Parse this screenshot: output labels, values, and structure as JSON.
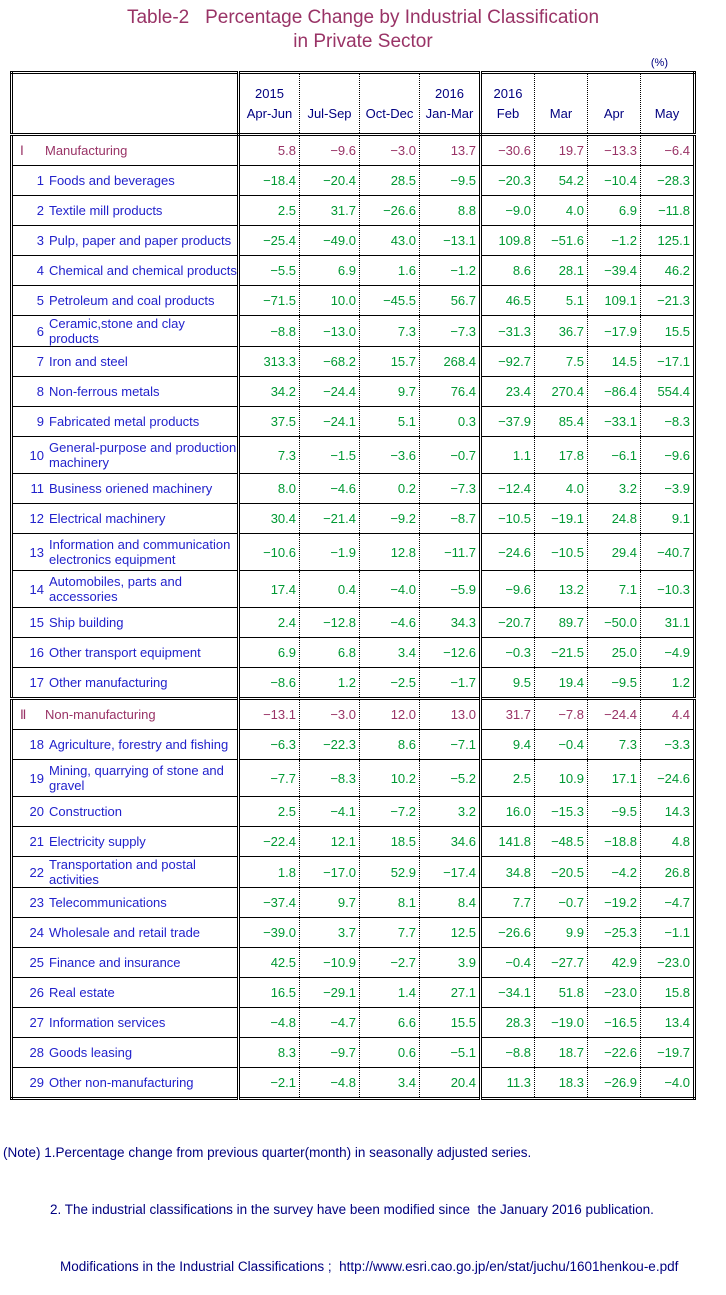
{
  "title": {
    "line1": "Table-2   Percentage Change by Industrial Classification",
    "line2": "in Private Sector"
  },
  "unit_label": "(%)",
  "colors": {
    "title": "#993366",
    "section_rows": "#993366",
    "item_labels": "#2222CC",
    "item_values": "#009933",
    "header_text": "#000080",
    "notes_text": "#000080"
  },
  "table": {
    "columns": [
      {
        "year": "2015",
        "period": "Apr-Jun"
      },
      {
        "year": "",
        "period": "Jul-Sep"
      },
      {
        "year": "",
        "period": "Oct-Dec"
      },
      {
        "year": "2016",
        "period": "Jan-Mar"
      },
      {
        "year": "2016",
        "period": "Feb"
      },
      {
        "year": "",
        "period": "Mar"
      },
      {
        "year": "",
        "period": "Apr"
      },
      {
        "year": "",
        "period": "May"
      }
    ],
    "rows": [
      {
        "no": "Ⅰ",
        "label": "Manufacturing",
        "type": "section",
        "tall": false,
        "values": [
          "5.8",
          "−9.6",
          "−3.0",
          "13.7",
          "−30.6",
          "19.7",
          "−13.3",
          "−6.4"
        ]
      },
      {
        "no": "1",
        "label": "Foods and beverages",
        "type": "item",
        "tall": false,
        "values": [
          "−18.4",
          "−20.4",
          "28.5",
          "−9.5",
          "−20.3",
          "54.2",
          "−10.4",
          "−28.3"
        ]
      },
      {
        "no": "2",
        "label": "Textile mill products",
        "type": "item",
        "tall": false,
        "values": [
          "2.5",
          "31.7",
          "−26.6",
          "8.8",
          "−9.0",
          "4.0",
          "6.9",
          "−11.8"
        ]
      },
      {
        "no": "3",
        "label": "Pulp, paper and paper products",
        "type": "item",
        "tall": false,
        "values": [
          "−25.4",
          "−49.0",
          "43.0",
          "−13.1",
          "109.8",
          "−51.6",
          "−1.2",
          "125.1"
        ]
      },
      {
        "no": "4",
        "label": "Chemical and chemical products",
        "type": "item",
        "tall": false,
        "values": [
          "−5.5",
          "6.9",
          "1.6",
          "−1.2",
          "8.6",
          "28.1",
          "−39.4",
          "46.2"
        ]
      },
      {
        "no": "5",
        "label": "Petroleum and coal products",
        "type": "item",
        "tall": false,
        "values": [
          "−71.5",
          "10.0",
          "−45.5",
          "56.7",
          "46.5",
          "5.1",
          "109.1",
          "−21.3"
        ]
      },
      {
        "no": "6",
        "label": "Ceramic,stone and clay products",
        "type": "item",
        "tall": false,
        "values": [
          "−8.8",
          "−13.0",
          "7.3",
          "−7.3",
          "−31.3",
          "36.7",
          "−17.9",
          "15.5"
        ]
      },
      {
        "no": "7",
        "label": "Iron and steel",
        "type": "item",
        "tall": false,
        "values": [
          "313.3",
          "−68.2",
          "15.7",
          "268.4",
          "−92.7",
          "7.5",
          "14.5",
          "−17.1"
        ]
      },
      {
        "no": "8",
        "label": "Non-ferrous metals",
        "type": "item",
        "tall": false,
        "values": [
          "34.2",
          "−24.4",
          "9.7",
          "76.4",
          "23.4",
          "270.4",
          "−86.4",
          "554.4"
        ]
      },
      {
        "no": "9",
        "label": "Fabricated metal products",
        "type": "item",
        "tall": false,
        "values": [
          "37.5",
          "−24.1",
          "5.1",
          "0.3",
          "−37.9",
          "85.4",
          "−33.1",
          "−8.3"
        ]
      },
      {
        "no": "10",
        "label": "General-purpose and production machinery",
        "type": "item",
        "tall": true,
        "values": [
          "7.3",
          "−1.5",
          "−3.6",
          "−0.7",
          "1.1",
          "17.8",
          "−6.1",
          "−9.6"
        ]
      },
      {
        "no": "11",
        "label": "Business oriened machinery",
        "type": "item",
        "tall": false,
        "values": [
          "8.0",
          "−4.6",
          "0.2",
          "−7.3",
          "−12.4",
          "4.0",
          "3.2",
          "−3.9"
        ]
      },
      {
        "no": "12",
        "label": "Electrical machinery",
        "type": "item",
        "tall": false,
        "values": [
          "30.4",
          "−21.4",
          "−9.2",
          "−8.7",
          "−10.5",
          "−19.1",
          "24.8",
          "9.1"
        ]
      },
      {
        "no": "13",
        "label": "Information and communication electronics equipment",
        "type": "item",
        "tall": true,
        "values": [
          "−10.6",
          "−1.9",
          "12.8",
          "−11.7",
          "−24.6",
          "−10.5",
          "29.4",
          "−40.7"
        ]
      },
      {
        "no": "14",
        "label": "Automobiles, parts and accessories",
        "type": "item",
        "tall": true,
        "values": [
          "17.4",
          "0.4",
          "−4.0",
          "−5.9",
          "−9.6",
          "13.2",
          "7.1",
          "−10.3"
        ]
      },
      {
        "no": "15",
        "label": "Ship building",
        "type": "item",
        "tall": false,
        "values": [
          "2.4",
          "−12.8",
          "−4.6",
          "34.3",
          "−20.7",
          "89.7",
          "−50.0",
          "31.1"
        ]
      },
      {
        "no": "16",
        "label": "Other transport equipment",
        "type": "item",
        "tall": false,
        "values": [
          "6.9",
          "6.8",
          "3.4",
          "−12.6",
          "−0.3",
          "−21.5",
          "25.0",
          "−4.9"
        ]
      },
      {
        "no": "17",
        "label": "Other manufacturing",
        "type": "item",
        "tall": false,
        "values": [
          "−8.6",
          "1.2",
          "−2.5",
          "−1.7",
          "9.5",
          "19.4",
          "−9.5",
          "1.2"
        ]
      },
      {
        "no": "Ⅱ",
        "label": "Non-manufacturing",
        "type": "section",
        "tall": false,
        "values": [
          "−13.1",
          "−3.0",
          "12.0",
          "13.0",
          "31.7",
          "−7.8",
          "−24.4",
          "4.4"
        ]
      },
      {
        "no": "18",
        "label": "Agriculture, forestry and fishing",
        "type": "item",
        "tall": false,
        "values": [
          "−6.3",
          "−22.3",
          "8.6",
          "−7.1",
          "9.4",
          "−0.4",
          "7.3",
          "−3.3"
        ]
      },
      {
        "no": "19",
        "label": "Mining, quarrying of stone and gravel",
        "type": "item",
        "tall": true,
        "values": [
          "−7.7",
          "−8.3",
          "10.2",
          "−5.2",
          "2.5",
          "10.9",
          "17.1",
          "−24.6"
        ]
      },
      {
        "no": "20",
        "label": "Construction",
        "type": "item",
        "tall": false,
        "values": [
          "2.5",
          "−4.1",
          "−7.2",
          "3.2",
          "16.0",
          "−15.3",
          "−9.5",
          "14.3"
        ]
      },
      {
        "no": "21",
        "label": "Electricity supply",
        "type": "item",
        "tall": false,
        "values": [
          "−22.4",
          "12.1",
          "18.5",
          "34.6",
          "141.8",
          "−48.5",
          "−18.8",
          "4.8"
        ]
      },
      {
        "no": "22",
        "label": "Transportation and postal activities",
        "type": "item",
        "tall": false,
        "values": [
          "1.8",
          "−17.0",
          "52.9",
          "−17.4",
          "34.8",
          "−20.5",
          "−4.2",
          "26.8"
        ]
      },
      {
        "no": "23",
        "label": "Telecommunications",
        "type": "item",
        "tall": false,
        "values": [
          "−37.4",
          "9.7",
          "8.1",
          "8.4",
          "7.7",
          "−0.7",
          "−19.2",
          "−4.7"
        ]
      },
      {
        "no": "24",
        "label": "Wholesale and retail trade",
        "type": "item",
        "tall": false,
        "values": [
          "−39.0",
          "3.7",
          "7.7",
          "12.5",
          "−26.6",
          "9.9",
          "−25.3",
          "−1.1"
        ]
      },
      {
        "no": "25",
        "label": "Finance and insurance",
        "type": "item",
        "tall": false,
        "values": [
          "42.5",
          "−10.9",
          "−2.7",
          "3.9",
          "−0.4",
          "−27.7",
          "42.9",
          "−23.0"
        ]
      },
      {
        "no": "26",
        "label": "Real estate",
        "type": "item",
        "tall": false,
        "values": [
          "16.5",
          "−29.1",
          "1.4",
          "27.1",
          "−34.1",
          "51.8",
          "−23.0",
          "15.8"
        ]
      },
      {
        "no": "27",
        "label": "Information services",
        "type": "item",
        "tall": false,
        "values": [
          "−4.8",
          "−4.7",
          "6.6",
          "15.5",
          "28.3",
          "−19.0",
          "−16.5",
          "13.4"
        ]
      },
      {
        "no": "28",
        "label": "Goods leasing",
        "type": "item",
        "tall": false,
        "values": [
          "8.3",
          "−9.7",
          "0.6",
          "−5.1",
          "−8.8",
          "18.7",
          "−22.6",
          "−19.7"
        ]
      },
      {
        "no": "29",
        "label": "Other non-manufacturing",
        "type": "item",
        "tall": false,
        "values": [
          "−2.1",
          "−4.8",
          "3.4",
          "20.4",
          "11.3",
          "18.3",
          "−26.9",
          "−4.0"
        ]
      }
    ]
  },
  "notes": [
    "(Note) 1.Percentage change from previous quarter(month) in seasonally adjusted series.",
    "2. The industrial classifications in the survey have been modified since  the January 2016 publication.",
    "Modifications in the Industrial Classifications ;  http://www.esri.cao.go.jp/en/stat/juchu/1601henkou-e.pdf"
  ]
}
